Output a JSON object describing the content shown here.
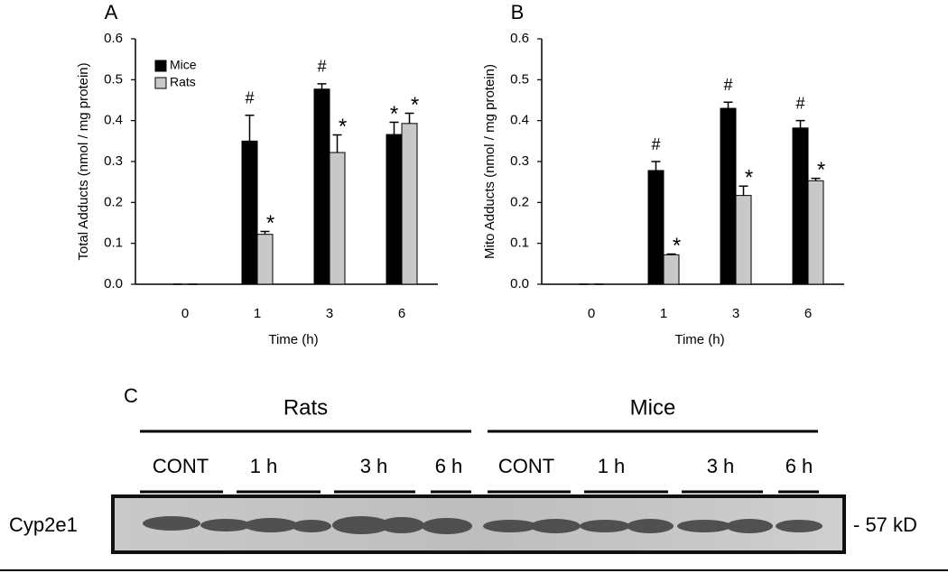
{
  "chart_data": [
    {
      "type": "bar",
      "panel_label": "A",
      "ylabel": "Total Adducts (nmol / mg protein)",
      "xlabel": "Time (h)",
      "categories": [
        "0",
        "1",
        "3",
        "6"
      ],
      "series": [
        {
          "name": "Mice",
          "color": "#000000",
          "values": [
            0,
            0.35,
            0.477,
            0.366
          ],
          "errors": [
            0,
            0.063,
            0.013,
            0.03
          ],
          "annotations": [
            null,
            "#",
            "#",
            "*"
          ]
        },
        {
          "name": "Rats",
          "color": "#c8c8c8",
          "values": [
            0,
            0.122,
            0.322,
            0.393
          ],
          "errors": [
            0,
            0.007,
            0.043,
            0.025
          ],
          "annotations": [
            null,
            "*",
            "*",
            "*"
          ]
        }
      ],
      "ylim": [
        0,
        0.6
      ],
      "yticks": [
        {
          "value": 0,
          "label": "0.0"
        },
        0.1,
        0.2,
        0.3,
        0.4,
        0.5,
        0.6
      ],
      "legend": "upper left"
    },
    {
      "type": "bar",
      "panel_label": "B",
      "ylabel": "Mito Adducts (nmol / mg protein)",
      "xlabel": "Time (h)",
      "categories": [
        "0",
        "1",
        "3",
        "6"
      ],
      "series": [
        {
          "color": "#000000",
          "values": [
            0,
            0.278,
            0.43,
            0.382
          ],
          "errors": [
            0,
            0.022,
            0.015,
            0.018
          ],
          "annotations": [
            null,
            "#",
            "#",
            "#"
          ]
        },
        {
          "color": "#c8c8c8",
          "values": [
            0,
            0.072,
            0.217,
            0.253
          ],
          "errors": [
            0,
            0.002,
            0.023,
            0.006
          ],
          "annotations": [
            null,
            "*",
            "*",
            "*"
          ]
        }
      ],
      "ylim": [
        0,
        0.6
      ],
      "yticks": [
        {
          "value": 0,
          "label": "0.0"
        },
        0.1,
        0.2,
        0.3,
        0.4,
        0.5,
        0.6
      ]
    }
  ],
  "blot": {
    "panel_label": "C",
    "protein": "Cyp2e1",
    "size": "- 57 kD",
    "groups": [
      {
        "label": "Rats",
        "lanes": [
          "CONT",
          "1 h",
          "3 h",
          "6 h"
        ]
      },
      {
        "label": "Mice",
        "lanes": [
          "CONT",
          "1 h",
          "3 h",
          "6 h"
        ]
      }
    ]
  }
}
